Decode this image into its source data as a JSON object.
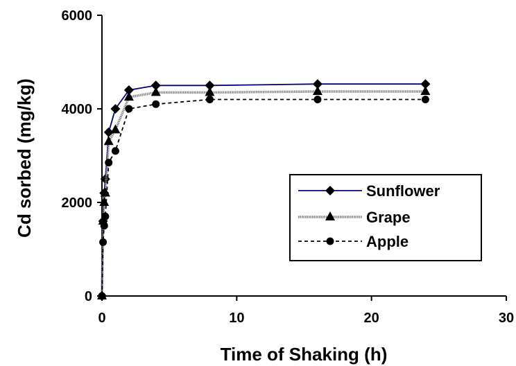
{
  "chart_data": {
    "type": "line",
    "title": "",
    "xlabel": "Time of Shaking (h)",
    "ylabel": "Cd sorbed (mg/kg)",
    "xlim": [
      0,
      30
    ],
    "ylim": [
      0,
      6000
    ],
    "xticks": [
      0,
      10,
      20,
      30
    ],
    "yticks": [
      0,
      2000,
      4000,
      6000
    ],
    "xtick_labels": [
      "0",
      "10",
      "20",
      "30"
    ],
    "ytick_labels": [
      "0",
      "2000",
      "4000",
      "6000"
    ],
    "grid": false,
    "legend_position": "center-right",
    "series": [
      {
        "name": "Sunflower",
        "color": "#000080",
        "line_style": "solid",
        "marker": "diamond",
        "x": [
          0,
          0.083,
          0.167,
          0.25,
          0.5,
          1,
          2,
          4,
          8,
          16,
          24
        ],
        "y": [
          0,
          1600,
          2200,
          2500,
          3500,
          4000,
          4400,
          4500,
          4500,
          4530,
          4530
        ]
      },
      {
        "name": "Grape",
        "color": "#808080",
        "line_style": "dotted-thick",
        "marker": "triangle",
        "x": [
          0,
          0.083,
          0.167,
          0.25,
          0.5,
          1,
          2,
          4,
          8,
          16,
          24
        ],
        "y": [
          0,
          1600,
          2000,
          2200,
          3300,
          3550,
          4250,
          4350,
          4350,
          4370,
          4370
        ]
      },
      {
        "name": "Apple",
        "color": "#000000",
        "line_style": "dashed",
        "marker": "circle",
        "x": [
          0,
          0.083,
          0.167,
          0.25,
          0.5,
          1,
          2,
          4,
          8,
          16,
          24
        ],
        "y": [
          0,
          1150,
          1500,
          1700,
          2850,
          3100,
          4000,
          4100,
          4200,
          4200,
          4200
        ]
      }
    ]
  }
}
